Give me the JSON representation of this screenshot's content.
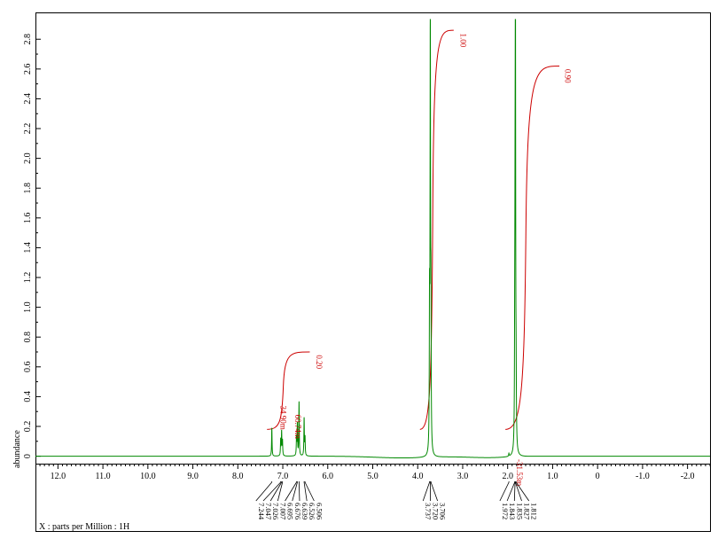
{
  "chart_data": {
    "type": "line",
    "title": "",
    "xlabel": "X : parts per Million : 1H",
    "ylabel": "abundance",
    "xlim": [
      12.5,
      -2.5
    ],
    "ylim": [
      -0.05,
      2.98
    ],
    "x_ticks": [
      "12.0",
      "11.0",
      "10.0",
      "9.0",
      "8.0",
      "7.0",
      "6.0",
      "5.0",
      "4.0",
      "3.0",
      "2.0",
      "1.0",
      "0",
      "-1.0",
      "-2.0"
    ],
    "y_ticks": [
      "0",
      "0.2",
      "0.4",
      "0.6",
      "0.8",
      "1.0",
      "1.2",
      "1.4",
      "1.6",
      "1.8",
      "2.0",
      "2.2",
      "2.4",
      "2.6",
      "2.8"
    ],
    "grid": false,
    "series": [
      {
        "peaks": [
          {
            "ppm": 7.244,
            "height": 0.19
          },
          {
            "ppm": 7.047,
            "height": 0.11
          },
          {
            "ppm": 7.026,
            "height": 0.16
          },
          {
            "ppm": 7.007,
            "height": 0.1
          },
          {
            "ppm": 6.695,
            "height": 0.12
          },
          {
            "ppm": 6.676,
            "height": 0.21
          },
          {
            "ppm": 6.639,
            "height": 0.36
          },
          {
            "ppm": 6.526,
            "height": 0.25
          },
          {
            "ppm": 6.506,
            "height": 0.12
          },
          {
            "ppm": 3.737,
            "height": 0.9
          },
          {
            "ppm": 3.72,
            "height": 2.95
          },
          {
            "ppm": 3.706,
            "height": 0.85
          },
          {
            "ppm": 1.972,
            "height": 0.02
          },
          {
            "ppm": 1.843,
            "height": 0.55
          },
          {
            "ppm": 1.835,
            "height": 1.0
          },
          {
            "ppm": 1.827,
            "height": 2.88
          },
          {
            "ppm": 1.812,
            "height": 0.35
          }
        ]
      }
    ],
    "peak_labels": [
      {
        "group": "aromatic",
        "anchor": 6.95,
        "labels": [
          "7.244",
          "7.047",
          "7.026",
          "7.007",
          "6.695",
          "6.676",
          "6.639",
          "6.526",
          "6.506"
        ]
      },
      {
        "group": "methoxy",
        "anchor": 3.72,
        "labels": [
          "3.737",
          "3.720",
          "3.706"
        ]
      },
      {
        "group": "methyl",
        "anchor": 1.85,
        "labels": [
          "1.972",
          "1.843",
          "1.835",
          "1.827",
          "1.812"
        ]
      }
    ],
    "integrals": [
      {
        "start": 7.35,
        "end": 6.4,
        "top": 0.7,
        "label": "0.20",
        "label_ppm": 6.25,
        "label_y": 0.68
      },
      {
        "start": 3.95,
        "end": 3.2,
        "top": 2.86,
        "label": "1.00",
        "label_ppm": 3.05,
        "label_y": 2.84
      },
      {
        "start": 2.05,
        "end": 0.85,
        "top": 2.62,
        "label": "0.90",
        "label_ppm": 0.72,
        "label_y": 2.6
      }
    ],
    "annotations": [
      {
        "text": "34.90m",
        "ppm": 7.05,
        "y": 0.34
      },
      {
        "text": "60.74m",
        "ppm": 6.72,
        "y": 0.28
      },
      {
        "text": "-31.53m",
        "ppm": 1.8,
        "y": -0.02
      }
    ],
    "colors": {
      "spectrum": "#008800",
      "integral": "#cc0000",
      "axis": "#000000"
    }
  }
}
